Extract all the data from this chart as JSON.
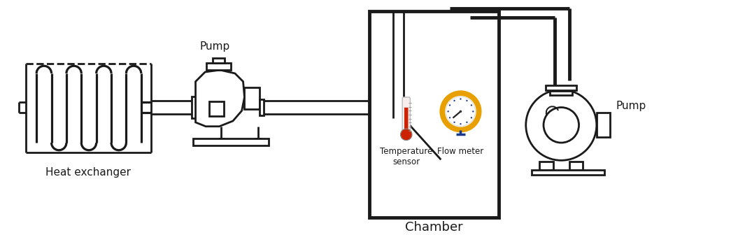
{
  "bg_color": "#ffffff",
  "line_color": "#1a1a1a",
  "lw": 2.0,
  "tlw": 3.5,
  "labels": {
    "heat_exchanger": "Heat exchanger",
    "pump1": "Pump",
    "chamber": "Chamber",
    "temp_sensor": "Temperature\nsensor",
    "flow_meter": "Flow meter",
    "pump2": "Pump"
  },
  "label_fontsize": 11,
  "chamber_fontsize": 13,
  "temp_color_bulb": "#cc2200",
  "temp_color_tube": "#f5dddd",
  "flow_color_ring": "#e8a000",
  "flow_color_face": "#f5f0e0",
  "flow_dot_color": "#1a3a8a"
}
